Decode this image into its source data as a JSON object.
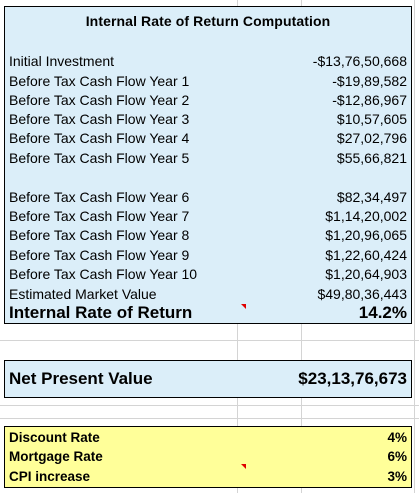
{
  "irr_panel": {
    "title": "Internal Rate of Return Computation",
    "rows": [
      {
        "label": "Initial Investment",
        "value": "-$13,76,50,668"
      },
      {
        "label": "Before Tax Cash Flow Year 1",
        "value": "-$19,89,582"
      },
      {
        "label": "Before Tax Cash Flow Year 2",
        "value": "-$12,86,967"
      },
      {
        "label": "Before Tax Cash Flow Year 3",
        "value": "$10,57,605"
      },
      {
        "label": "Before Tax Cash Flow Year 4",
        "value": "$27,02,796"
      },
      {
        "label": "Before Tax Cash Flow Year 5",
        "value": "$55,66,821"
      },
      {
        "label": "Before Tax Cash Flow Year 6",
        "value": "$82,34,497"
      },
      {
        "label": "Before Tax Cash Flow Year 7",
        "value": "$1,14,20,002"
      },
      {
        "label": "Before Tax Cash Flow Year 8",
        "value": "$1,20,96,065"
      },
      {
        "label": "Before Tax Cash Flow Year 9",
        "value": "$1,22,60,424"
      },
      {
        "label": "Before Tax Cash Flow Year 10",
        "value": "$1,20,64,903"
      },
      {
        "label": "Estimated Market Value",
        "value": "$49,80,36,443"
      }
    ],
    "result": {
      "label": "Internal Rate of Return",
      "value": "14.2%"
    }
  },
  "npv_panel": {
    "label": "Net Present Value",
    "value": "$23,13,76,673"
  },
  "rates_panel": {
    "rows": [
      {
        "label": "Discount Rate",
        "value": "4%"
      },
      {
        "label": "Mortgage Rate",
        "value": "6%"
      },
      {
        "label": "CPI increase",
        "value": "3%"
      }
    ]
  },
  "colors": {
    "panel_blue": "#dbeef9",
    "panel_yellow": "#ffff99",
    "comment_marker": "#e00000",
    "grid": "#d4d4d4"
  }
}
